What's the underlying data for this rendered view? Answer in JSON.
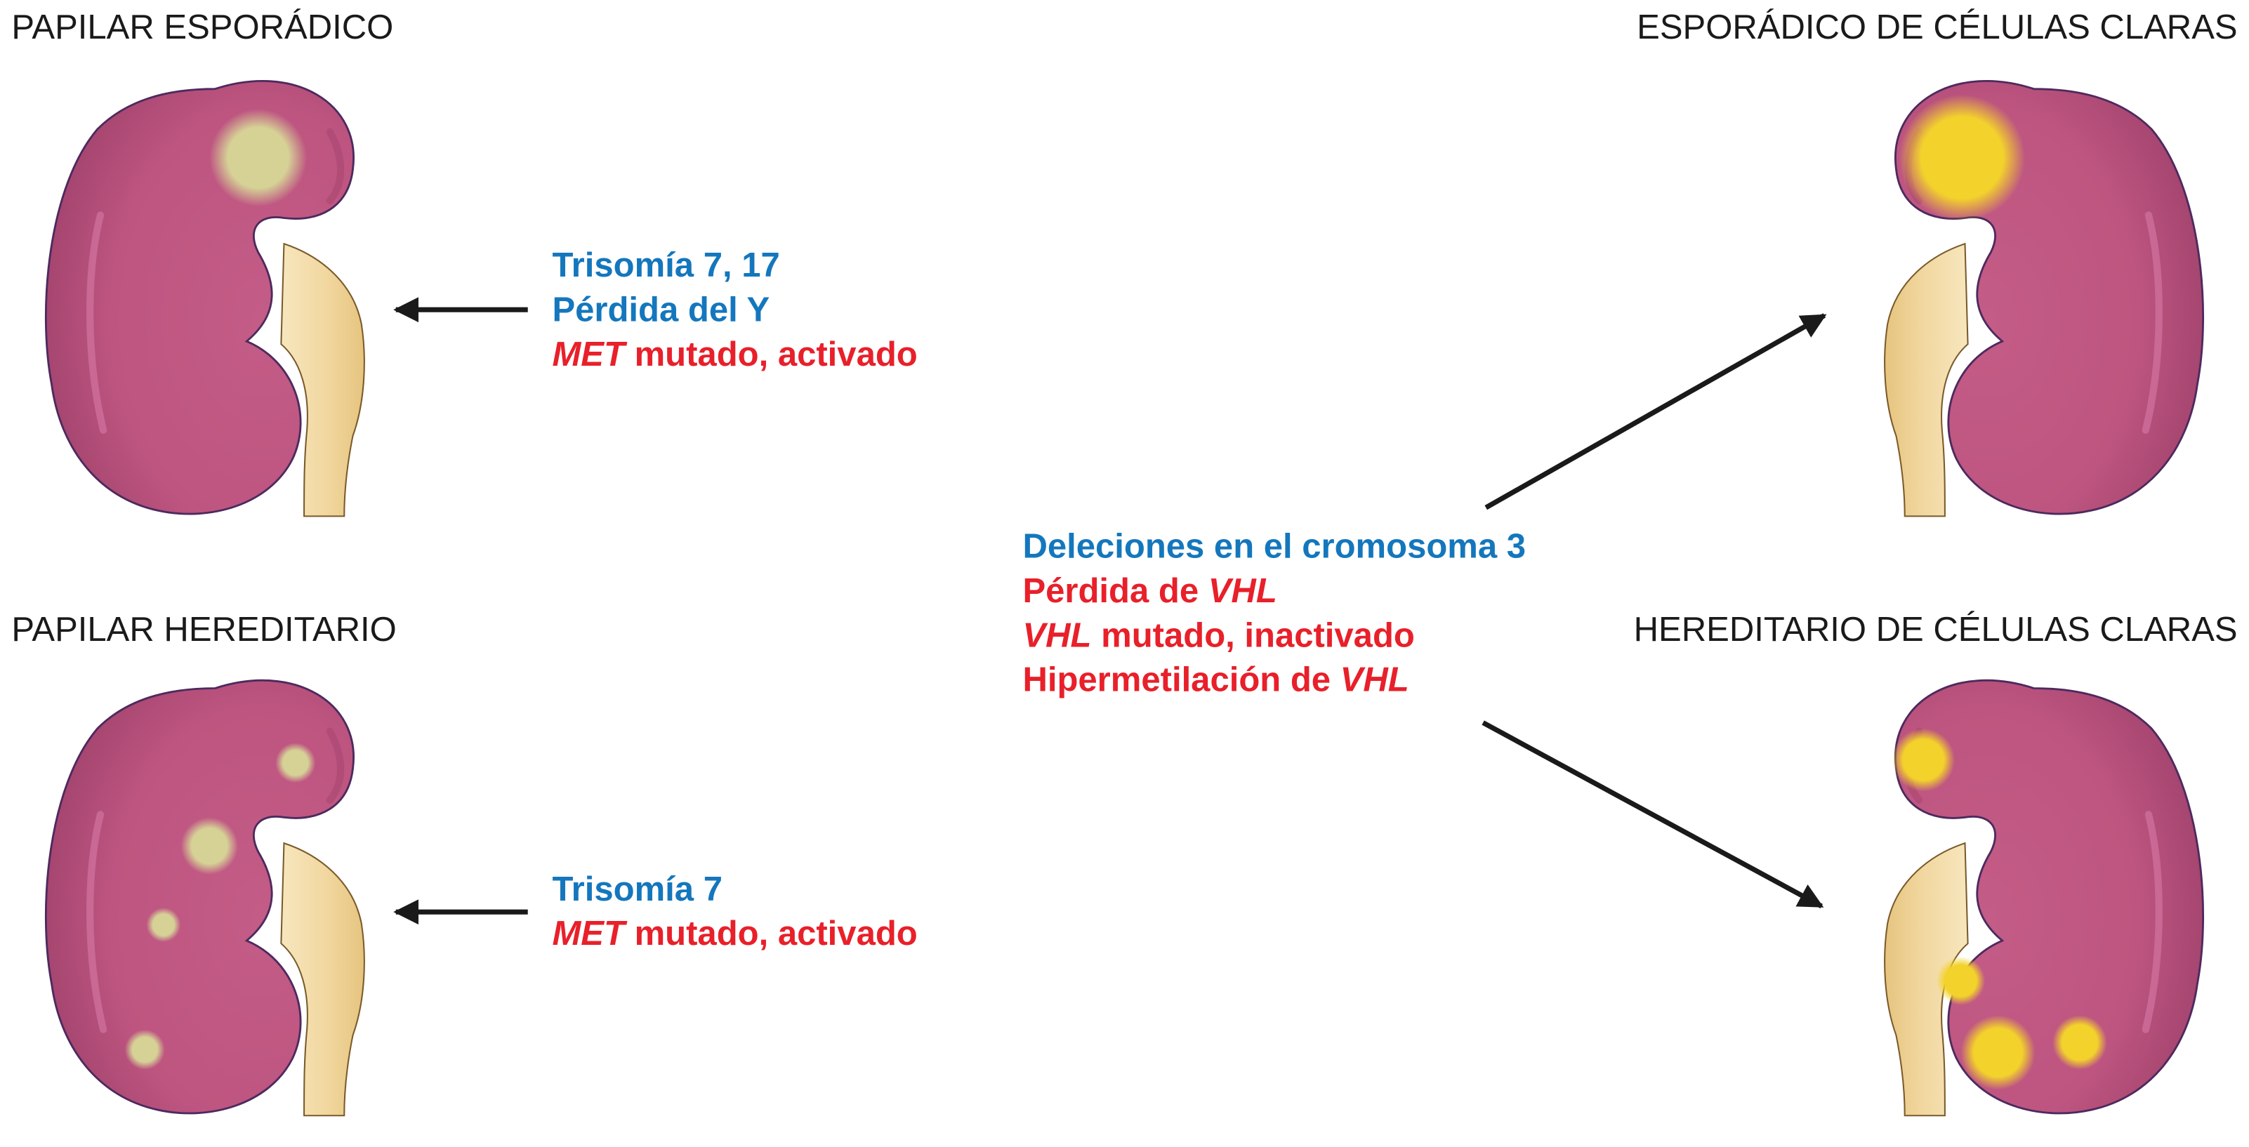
{
  "titles": {
    "top_left": "PAPILAR ESPORÁDICO",
    "top_right": "ESPORÁDICO DE CÉLULAS CLARAS",
    "bottom_left": "PAPILAR HEREDITARIO",
    "bottom_right": "HEREDITARIO DE CÉLULAS CLARAS"
  },
  "annotations": {
    "papilar_esporadico": {
      "line1": "Trisomía 7, 17",
      "line2": "Pérdida del Y",
      "line3_gene": "MET",
      "line3_rest": " mutado, activado"
    },
    "papilar_hereditario": {
      "line1": "Trisomía 7",
      "line2_gene": "MET",
      "line2_rest": " mutado, activado"
    },
    "celulas_claras": {
      "line1": "Deleciones en el cromosoma 3",
      "line2_text": "Pérdida de ",
      "line2_gene": "VHL",
      "line3_gene": "VHL",
      "line3_rest": " mutado, inactivado",
      "line4_text": "Hipermetilación de ",
      "line4_gene": "VHL"
    }
  },
  "colors": {
    "kidney": "#bd5580",
    "kidney_outline": "#4d2a5e",
    "ureter": "#f1d79f",
    "papillary_tumor": "#d6d296",
    "clear_cell_tumor": "#f3d22c",
    "blue_text": "#1477bd",
    "red_text": "#e8202a",
    "arrow": "#1a1a1a"
  }
}
